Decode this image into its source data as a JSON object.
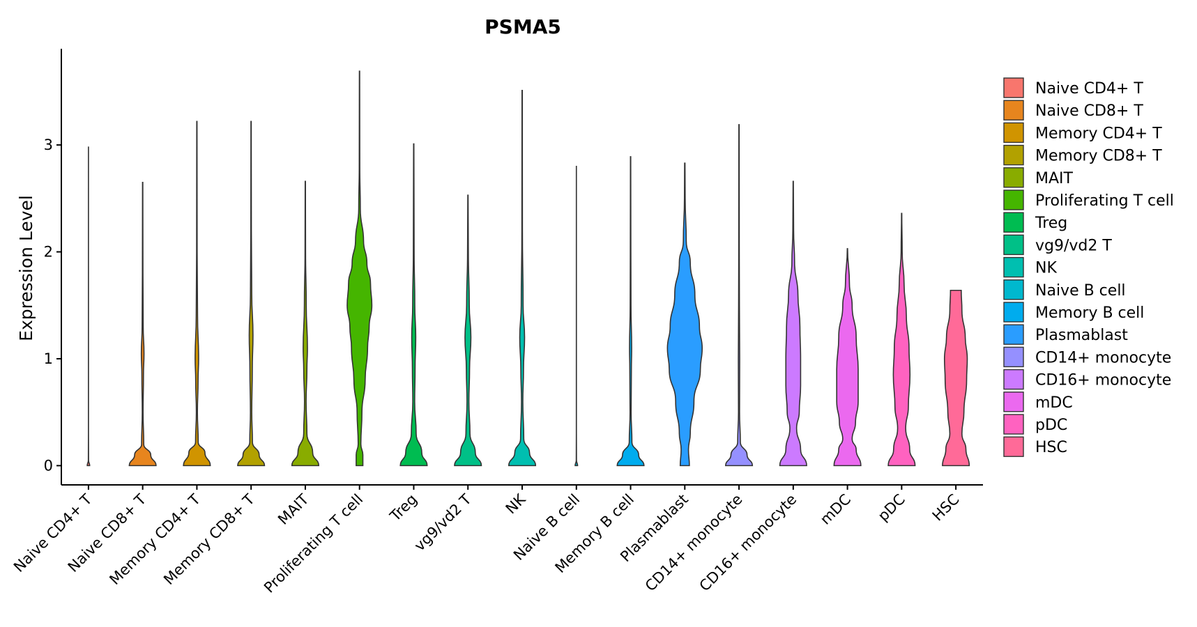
{
  "chart_data": {
    "type": "violin",
    "title": "PSMA5",
    "xlabel": "",
    "ylabel": "Expression Level",
    "ylim": [
      -0.18,
      3.9
    ],
    "yticks": [
      0,
      1,
      2,
      3
    ],
    "legend_position": "right",
    "categories": [
      {
        "name": "Naive CD4+ T",
        "color": "#F8766D",
        "max": 2.98,
        "width": 0.05,
        "profile": [
          [
            0,
            1.0
          ],
          [
            0.05,
            0.1
          ],
          [
            0.3,
            0.03
          ],
          [
            2.98,
            0.01
          ]
        ]
      },
      {
        "name": "Naive CD8+ T",
        "color": "#E7851E",
        "max": 2.65,
        "width": 0.55,
        "profile": [
          [
            0,
            1.0
          ],
          [
            0.1,
            0.6
          ],
          [
            0.2,
            0.08
          ],
          [
            0.5,
            0.03
          ],
          [
            0.85,
            0.06
          ],
          [
            1.05,
            0.1
          ],
          [
            1.3,
            0.04
          ],
          [
            1.8,
            0.02
          ],
          [
            2.65,
            0.01
          ]
        ]
      },
      {
        "name": "Memory CD4+ T",
        "color": "#D09400",
        "max": 3.22,
        "width": 0.55,
        "profile": [
          [
            0,
            1.0
          ],
          [
            0.12,
            0.6
          ],
          [
            0.22,
            0.1
          ],
          [
            0.5,
            0.04
          ],
          [
            0.8,
            0.09
          ],
          [
            1.0,
            0.13
          ],
          [
            1.4,
            0.05
          ],
          [
            2.0,
            0.02
          ],
          [
            3.22,
            0.01
          ]
        ]
      },
      {
        "name": "Memory CD8+ T",
        "color": "#B2A100",
        "max": 3.22,
        "width": 0.55,
        "profile": [
          [
            0,
            1.0
          ],
          [
            0.1,
            0.6
          ],
          [
            0.22,
            0.1
          ],
          [
            0.5,
            0.05
          ],
          [
            0.9,
            0.09
          ],
          [
            1.22,
            0.14
          ],
          [
            1.6,
            0.05
          ],
          [
            2.2,
            0.02
          ],
          [
            3.22,
            0.01
          ]
        ]
      },
      {
        "name": "MAIT",
        "color": "#89AC00",
        "max": 2.66,
        "width": 0.55,
        "profile": [
          [
            0,
            1.0
          ],
          [
            0.12,
            0.55
          ],
          [
            0.3,
            0.12
          ],
          [
            0.6,
            0.06
          ],
          [
            0.9,
            0.12
          ],
          [
            1.1,
            0.16
          ],
          [
            1.5,
            0.07
          ],
          [
            2.0,
            0.02
          ],
          [
            2.66,
            0.01
          ]
        ]
      },
      {
        "name": "Proliferating T cell",
        "color": "#45B500",
        "max": 3.69,
        "width": 0.55,
        "profile": [
          [
            0,
            0.25
          ],
          [
            0.1,
            0.25
          ],
          [
            0.2,
            0.1
          ],
          [
            0.5,
            0.18
          ],
          [
            0.8,
            0.42
          ],
          [
            1.1,
            0.6
          ],
          [
            1.3,
            0.72
          ],
          [
            1.5,
            0.92
          ],
          [
            1.7,
            0.82
          ],
          [
            1.9,
            0.55
          ],
          [
            2.1,
            0.3
          ],
          [
            2.4,
            0.06
          ],
          [
            2.8,
            0.02
          ],
          [
            3.69,
            0.01
          ]
        ]
      },
      {
        "name": "Treg",
        "color": "#00BC51",
        "max": 3.01,
        "width": 0.55,
        "profile": [
          [
            0,
            1.0
          ],
          [
            0.12,
            0.6
          ],
          [
            0.3,
            0.18
          ],
          [
            0.6,
            0.07
          ],
          [
            0.9,
            0.1
          ],
          [
            1.2,
            0.15
          ],
          [
            1.5,
            0.08
          ],
          [
            2.0,
            0.03
          ],
          [
            3.01,
            0.01
          ]
        ]
      },
      {
        "name": "vg9/vd2 T",
        "color": "#00C087",
        "max": 2.53,
        "width": 0.55,
        "profile": [
          [
            0,
            1.0
          ],
          [
            0.12,
            0.55
          ],
          [
            0.3,
            0.15
          ],
          [
            0.6,
            0.07
          ],
          [
            0.9,
            0.12
          ],
          [
            1.2,
            0.22
          ],
          [
            1.5,
            0.1
          ],
          [
            2.0,
            0.03
          ],
          [
            2.53,
            0.01
          ]
        ]
      },
      {
        "name": "NK",
        "color": "#00BFB0",
        "max": 3.51,
        "width": 0.55,
        "profile": [
          [
            0,
            1.0
          ],
          [
            0.12,
            0.55
          ],
          [
            0.25,
            0.12
          ],
          [
            0.6,
            0.05
          ],
          [
            0.9,
            0.1
          ],
          [
            1.2,
            0.18
          ],
          [
            1.5,
            0.07
          ],
          [
            2.2,
            0.02
          ],
          [
            3.51,
            0.01
          ]
        ]
      },
      {
        "name": "Naive B cell",
        "color": "#00B8CE",
        "max": 2.8,
        "width": 0.05,
        "profile": [
          [
            0,
            1.0
          ],
          [
            0.05,
            0.1
          ],
          [
            0.3,
            0.03
          ],
          [
            2.8,
            0.01
          ]
        ]
      },
      {
        "name": "Memory B cell",
        "color": "#00ACEE",
        "max": 2.89,
        "width": 0.55,
        "profile": [
          [
            0,
            1.0
          ],
          [
            0.1,
            0.6
          ],
          [
            0.22,
            0.1
          ],
          [
            0.5,
            0.04
          ],
          [
            0.9,
            0.06
          ],
          [
            1.1,
            0.08
          ],
          [
            1.5,
            0.03
          ],
          [
            2.0,
            0.02
          ],
          [
            2.89,
            0.01
          ]
        ]
      },
      {
        "name": "Plasmablast",
        "color": "#2A9DFF",
        "max": 2.83,
        "width": 0.75,
        "profile": [
          [
            0,
            0.25
          ],
          [
            0.15,
            0.2
          ],
          [
            0.3,
            0.3
          ],
          [
            0.6,
            0.5
          ],
          [
            0.9,
            0.85
          ],
          [
            1.1,
            0.95
          ],
          [
            1.3,
            0.8
          ],
          [
            1.6,
            0.55
          ],
          [
            1.9,
            0.3
          ],
          [
            2.1,
            0.08
          ],
          [
            2.5,
            0.02
          ],
          [
            2.83,
            0.01
          ]
        ]
      },
      {
        "name": "CD14+ monocyte",
        "color": "#9590FF",
        "max": 3.19,
        "width": 0.55,
        "profile": [
          [
            0,
            1.0
          ],
          [
            0.1,
            0.6
          ],
          [
            0.22,
            0.1
          ],
          [
            0.5,
            0.04
          ],
          [
            1.0,
            0.05
          ],
          [
            1.5,
            0.03
          ],
          [
            2.0,
            0.02
          ],
          [
            3.19,
            0.01
          ]
        ]
      },
      {
        "name": "CD16+ monocyte",
        "color": "#CC7AFF",
        "max": 2.66,
        "width": 0.55,
        "profile": [
          [
            0,
            1.0
          ],
          [
            0.15,
            0.55
          ],
          [
            0.35,
            0.25
          ],
          [
            0.5,
            0.45
          ],
          [
            0.75,
            0.55
          ],
          [
            1.0,
            0.55
          ],
          [
            1.3,
            0.5
          ],
          [
            1.6,
            0.35
          ],
          [
            1.9,
            0.1
          ],
          [
            2.2,
            0.03
          ],
          [
            2.66,
            0.01
          ]
        ]
      },
      {
        "name": "mDC",
        "color": "#EB69EF",
        "max": 2.03,
        "width": 0.55,
        "profile": [
          [
            0,
            1.0
          ],
          [
            0.15,
            0.65
          ],
          [
            0.25,
            0.35
          ],
          [
            0.4,
            0.6
          ],
          [
            0.6,
            0.8
          ],
          [
            0.9,
            0.8
          ],
          [
            1.2,
            0.65
          ],
          [
            1.5,
            0.35
          ],
          [
            1.7,
            0.15
          ],
          [
            2.03,
            0.01
          ]
        ]
      },
      {
        "name": "pDC",
        "color": "#FF62C0",
        "max": 2.36,
        "width": 0.55,
        "profile": [
          [
            0,
            1.0
          ],
          [
            0.15,
            0.6
          ],
          [
            0.35,
            0.3
          ],
          [
            0.55,
            0.5
          ],
          [
            0.85,
            0.62
          ],
          [
            1.1,
            0.55
          ],
          [
            1.4,
            0.35
          ],
          [
            1.7,
            0.18
          ],
          [
            2.0,
            0.04
          ],
          [
            2.36,
            0.01
          ]
        ]
      },
      {
        "name": "HSC",
        "color": "#FF6A98",
        "max": 1.64,
        "width": 0.55,
        "profile": [
          [
            0,
            1.0
          ],
          [
            0.15,
            0.75
          ],
          [
            0.3,
            0.45
          ],
          [
            0.5,
            0.6
          ],
          [
            0.8,
            0.8
          ],
          [
            1.0,
            0.85
          ],
          [
            1.2,
            0.7
          ],
          [
            1.45,
            0.45
          ],
          [
            1.64,
            0.4
          ]
        ]
      }
    ]
  }
}
